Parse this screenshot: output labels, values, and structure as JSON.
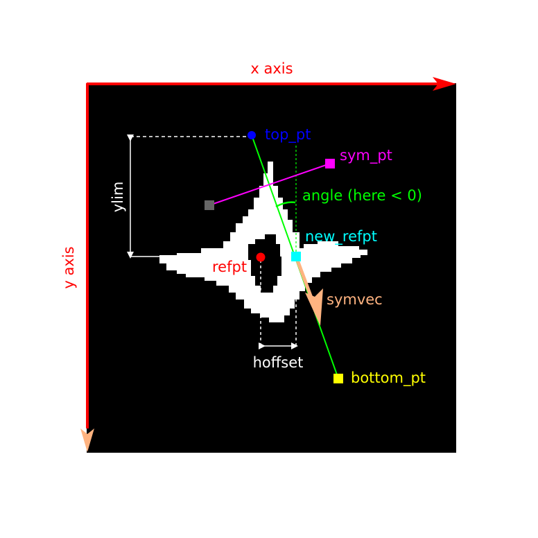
{
  "axes": {
    "x_label": "x axis",
    "y_label": "y axis",
    "x_color": "#ff0000",
    "y_color": "#ff0000",
    "y_arrow_color": "#ffb380"
  },
  "points": {
    "top_pt": {
      "label": "top_pt",
      "color": "#0000ff"
    },
    "sym_pt": {
      "label": "sym_pt",
      "color": "#ff00ff"
    },
    "new_refpt": {
      "label": "new_refpt",
      "color": "#00ffff"
    },
    "refpt": {
      "label": "refpt",
      "color": "#ff0000"
    },
    "bottom_pt": {
      "label": "bottom_pt",
      "color": "#ffff00"
    },
    "grey_pt": {
      "color": "#666666"
    }
  },
  "annotations": {
    "angle": {
      "label": "angle (here < 0)",
      "color": "#00ff00"
    },
    "symvec": {
      "label": "symvec",
      "color": "#ffb380"
    },
    "ylim": {
      "label": "ylim",
      "color": "#ffffff"
    },
    "hoffset": {
      "label": "hoffset",
      "color": "#ffffff"
    }
  },
  "colors": {
    "background": "#000000",
    "shape": "#ffffff",
    "sym_line": "#ff00ff",
    "fit_line": "#00ff00"
  }
}
